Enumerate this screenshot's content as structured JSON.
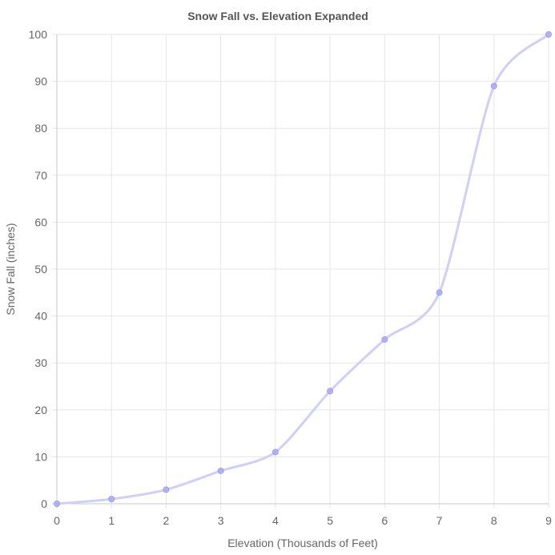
{
  "chart_data": {
    "type": "line",
    "title": "Snow Fall vs. Elevation Expanded",
    "xlabel": "Elevation (Thousands of Feet)",
    "ylabel": "Snow Fall (inches)",
    "x": [
      0,
      1,
      2,
      3,
      4,
      5,
      6,
      7,
      8,
      9
    ],
    "series": [
      {
        "values": [
          0,
          1,
          3,
          7,
          11,
          24,
          35,
          45,
          89,
          100
        ]
      }
    ],
    "xlim": [
      0,
      9
    ],
    "ylim": [
      0,
      100
    ],
    "x_ticks": [
      "0",
      "1",
      "2",
      "3",
      "4",
      "5",
      "6",
      "7",
      "8",
      "9"
    ],
    "y_ticks": [
      "0",
      "10",
      "20",
      "30",
      "40",
      "50",
      "60",
      "70",
      "80",
      "90",
      "100"
    ],
    "grid": true,
    "legend": "none",
    "colors": {
      "line": "#cfcff9",
      "point_fill": "#a9a9f2",
      "point_stroke": "#9d9def"
    }
  }
}
